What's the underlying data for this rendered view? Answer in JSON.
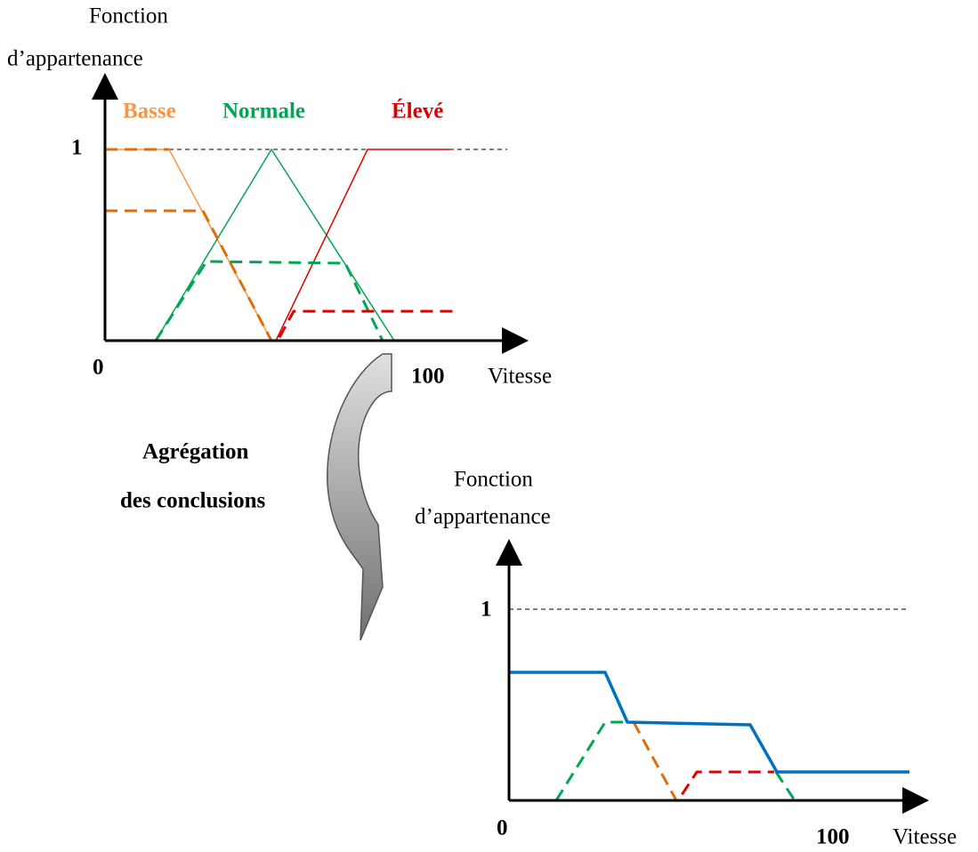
{
  "top_chart": {
    "y_label": [
      "Fonction",
      "d’appartenance"
    ],
    "legend": [
      "Basse",
      "Normale",
      "Élevé"
    ],
    "y_one": "1",
    "x_zero": "0",
    "x_max": "100",
    "x_label": "Vitesse"
  },
  "arrow_label": [
    "Agrégation",
    "des conclusions"
  ],
  "bottom_chart": {
    "y_label": [
      "Fonction",
      "d’appartenance"
    ],
    "y_one": "1",
    "x_zero": "0",
    "x_max": "100",
    "x_label": "Vitesse"
  }
}
